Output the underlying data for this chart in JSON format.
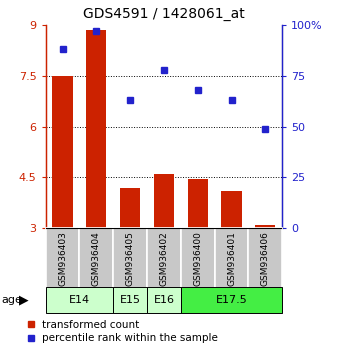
{
  "title": "GDS4591 / 1428061_at",
  "samples": [
    "GSM936403",
    "GSM936404",
    "GSM936405",
    "GSM936402",
    "GSM936400",
    "GSM936401",
    "GSM936406"
  ],
  "bar_values": [
    7.5,
    8.85,
    4.2,
    4.6,
    4.45,
    4.1,
    3.1
  ],
  "dot_values": [
    88,
    97,
    63,
    78,
    68,
    63,
    49
  ],
  "age_groups": [
    {
      "label": "E14",
      "start": 0,
      "end": 2,
      "color": "#ccffcc"
    },
    {
      "label": "E15",
      "start": 2,
      "end": 3,
      "color": "#ccffcc"
    },
    {
      "label": "E16",
      "start": 3,
      "end": 4,
      "color": "#ccffcc"
    },
    {
      "label": "E17.5",
      "start": 4,
      "end": 7,
      "color": "#44ee44"
    }
  ],
  "bar_color": "#cc2200",
  "dot_color": "#2222cc",
  "bar_bottom": 3.0,
  "left_ylim": [
    3.0,
    9.0
  ],
  "left_yticks": [
    3,
    4.5,
    6,
    7.5,
    9
  ],
  "left_yticklabels": [
    "3",
    "4.5",
    "6",
    "7.5",
    "9"
  ],
  "right_ylim": [
    0,
    100
  ],
  "right_yticks": [
    0,
    25,
    50,
    75,
    100
  ],
  "right_yticklabels": [
    "0",
    "25",
    "50",
    "75",
    "100%"
  ],
  "hlines": [
    4.5,
    6.0,
    7.5
  ],
  "legend_bar": "transformed count",
  "legend_dot": "percentile rank within the sample",
  "sample_box_color": "#c8c8c8",
  "age_label_fontsize": 8,
  "tick_fontsize": 8
}
